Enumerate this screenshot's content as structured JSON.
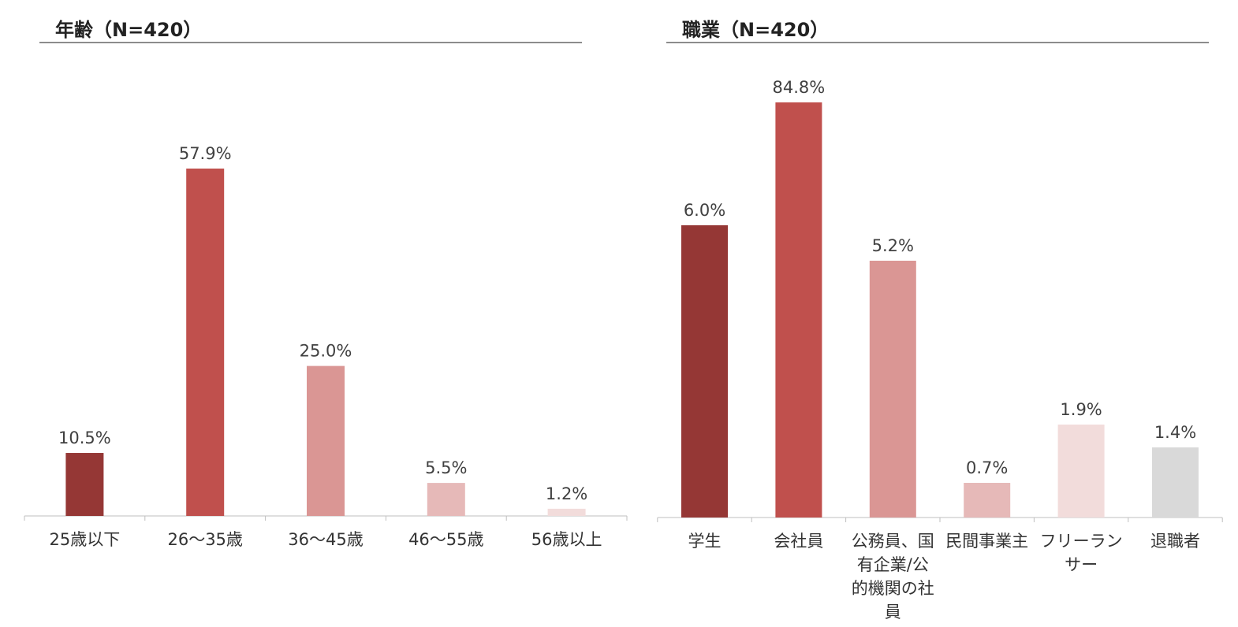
{
  "chart_data": [
    {
      "type": "bar",
      "title": "年齢（N=420）",
      "categories": [
        "25歳以下",
        "26～35歳",
        "36～45歳",
        "46～55歳",
        "56歳以上"
      ],
      "values": [
        10.5,
        57.9,
        25.0,
        5.5,
        1.2
      ],
      "value_labels": [
        "10.5%",
        "57.9%",
        "25.0%",
        "5.5%",
        "1.2%"
      ],
      "colors": [
        "#953735",
        "#c0504d",
        "#da9694",
        "#e6b9b8",
        "#f2dcdb"
      ],
      "ylim": [
        0,
        60
      ]
    },
    {
      "type": "bar",
      "title": "職業（N=420）",
      "categories": [
        "学生",
        "会社員",
        "公務員、国有企業/公的機関の社員",
        "民間事業主",
        "フリーランサー",
        "退職者"
      ],
      "category_lines": [
        [
          "学生"
        ],
        [
          "会社員"
        ],
        [
          "公務員、国",
          "有企業/公",
          "的機関の社",
          "員"
        ],
        [
          "民間事業主"
        ],
        [
          "フリーラン",
          "サー"
        ],
        [
          "退職者"
        ]
      ],
      "values": [
        6.0,
        84.8,
        5.2,
        0.7,
        1.9,
        1.4
      ],
      "value_labels": [
        "6.0%",
        "84.8%",
        "5.2%",
        "0.7%",
        "1.9%",
        "1.4%"
      ],
      "colors": [
        "#953735",
        "#c0504d",
        "#da9694",
        "#e6b9b8",
        "#f2dcdb",
        "#d9d9d9"
      ]
    }
  ]
}
